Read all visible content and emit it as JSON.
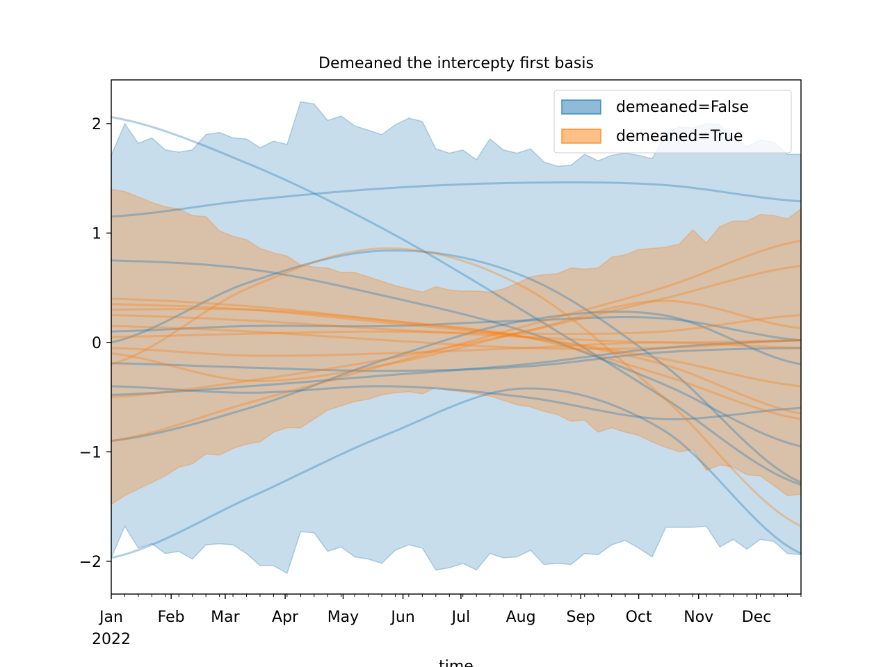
{
  "chart_data": {
    "type": "area",
    "title": "Demeaned the intercepty first basis",
    "xlabel": "time",
    "ylabel": "",
    "x_range": [
      "2022-01-01",
      "2022-12-24"
    ],
    "ylim": [
      -2.3,
      2.4
    ],
    "grid": false,
    "legend": {
      "placement": "upper right",
      "entries": [
        {
          "label": "demeaned=False",
          "color": "#1f77b4"
        },
        {
          "label": "demeaned=True",
          "color": "#ff7f0e"
        }
      ]
    },
    "x_ticks": [
      {
        "date": "2022-01-01",
        "label": "Jan",
        "sublabel": "2022"
      },
      {
        "date": "2022-02-01",
        "label": "Feb"
      },
      {
        "date": "2022-03-01",
        "label": "Mar"
      },
      {
        "date": "2022-04-01",
        "label": "Apr"
      },
      {
        "date": "2022-05-01",
        "label": "May"
      },
      {
        "date": "2022-06-01",
        "label": "Jun"
      },
      {
        "date": "2022-07-01",
        "label": "Jul"
      },
      {
        "date": "2022-08-01",
        "label": "Aug"
      },
      {
        "date": "2022-09-01",
        "label": "Sep"
      },
      {
        "date": "2022-10-01",
        "label": "Oct"
      },
      {
        "date": "2022-11-01",
        "label": "Nov"
      },
      {
        "date": "2022-12-01",
        "label": "Dec"
      }
    ],
    "y_ticks": [
      {
        "value": 2,
        "label": "2"
      },
      {
        "value": 1,
        "label": "1"
      },
      {
        "value": 0,
        "label": "0"
      },
      {
        "value": -1,
        "label": "−1"
      },
      {
        "value": -2,
        "label": "−2"
      }
    ],
    "bands": [
      {
        "name": "demeaned=False",
        "color": "#1f77b4",
        "upper_values": [
          1.71,
          2.0,
          1.82,
          1.87,
          1.76,
          1.74,
          1.76,
          1.9,
          1.92,
          1.87,
          1.86,
          1.78,
          1.84,
          1.81,
          2.2,
          2.18,
          2.03,
          2.07,
          1.98,
          1.94,
          1.9,
          1.99,
          2.05,
          2.02,
          1.77,
          1.73,
          1.76,
          1.67,
          1.86,
          1.76,
          1.73,
          1.77,
          1.65,
          1.61,
          1.62,
          1.72,
          1.66,
          1.71,
          1.73,
          1.71,
          1.68,
          1.91,
          1.97,
          1.96,
          2.0,
          1.99,
          1.86,
          1.79,
          1.85,
          1.83,
          1.72,
          1.72
        ],
        "lower_values": [
          -1.97,
          -1.68,
          -1.88,
          -1.84,
          -1.93,
          -1.91,
          -1.98,
          -1.85,
          -1.84,
          -1.85,
          -1.93,
          -2.04,
          -2.04,
          -2.11,
          -1.73,
          -1.74,
          -1.91,
          -1.87,
          -1.96,
          -1.98,
          -2.02,
          -1.9,
          -1.85,
          -1.88,
          -2.08,
          -2.06,
          -2.02,
          -2.08,
          -1.93,
          -1.97,
          -1.96,
          -1.9,
          -2.03,
          -2.02,
          -2.03,
          -1.93,
          -1.94,
          -1.85,
          -1.81,
          -1.88,
          -1.96,
          -1.69,
          -1.69,
          -1.69,
          -1.68,
          -1.87,
          -1.8,
          -1.89,
          -1.8,
          -1.82,
          -1.93,
          -1.94
        ]
      },
      {
        "name": "demeaned=True",
        "color": "#ff7f0e",
        "upper_values": [
          1.4,
          1.38,
          1.33,
          1.28,
          1.24,
          1.22,
          1.16,
          1.15,
          1.02,
          0.97,
          0.94,
          0.86,
          0.82,
          0.79,
          0.71,
          0.69,
          0.68,
          0.64,
          0.64,
          0.6,
          0.56,
          0.52,
          0.49,
          0.46,
          0.51,
          0.48,
          0.47,
          0.47,
          0.46,
          0.49,
          0.54,
          0.6,
          0.62,
          0.63,
          0.68,
          0.67,
          0.68,
          0.78,
          0.8,
          0.85,
          0.86,
          0.87,
          0.9,
          1.03,
          0.91,
          1.06,
          1.11,
          1.11,
          1.17,
          1.16,
          1.13,
          1.22
        ],
        "lower_values": [
          -1.48,
          -1.4,
          -1.34,
          -1.28,
          -1.22,
          -1.14,
          -1.11,
          -1.02,
          -1.03,
          -0.97,
          -0.93,
          -0.91,
          -0.82,
          -0.78,
          -0.78,
          -0.7,
          -0.62,
          -0.58,
          -0.54,
          -0.52,
          -0.48,
          -0.46,
          -0.45,
          -0.47,
          -0.41,
          -0.44,
          -0.45,
          -0.47,
          -0.49,
          -0.53,
          -0.57,
          -0.59,
          -0.63,
          -0.66,
          -0.72,
          -0.71,
          -0.82,
          -0.78,
          -0.82,
          -0.85,
          -0.91,
          -0.96,
          -1.0,
          -0.98,
          -1.17,
          -1.12,
          -1.14,
          -1.21,
          -1.22,
          -1.31,
          -1.4,
          -1.39
        ]
      }
    ],
    "line_groups": [
      {
        "name": "demeaned=False",
        "color": "#1f77b4",
        "x_knots": [
          0,
          0.2,
          0.4,
          0.6,
          0.8,
          1
        ],
        "lines": [
          [
            2.06,
            1.63,
            1.02,
            0.28,
            -0.5,
            -1.3
          ],
          [
            -1.97,
            -1.42,
            -0.84,
            -0.42,
            -0.8,
            -1.93
          ],
          [
            1.15,
            1.3,
            1.41,
            1.46,
            1.44,
            1.29
          ],
          [
            0.75,
            0.67,
            0.42,
            0.1,
            -0.38,
            -0.95
          ],
          [
            -0.4,
            -0.46,
            -0.4,
            -0.5,
            -0.7,
            -0.6
          ],
          [
            0.1,
            0.15,
            0.15,
            0.2,
            0.22,
            0.02
          ],
          [
            -0.48,
            -0.4,
            -0.3,
            -0.2,
            -0.05,
            0.02
          ],
          [
            -0.9,
            -0.6,
            -0.15,
            0.2,
            0.25,
            -0.2
          ],
          [
            0.0,
            0.55,
            0.84,
            0.6,
            -0.2,
            -1.28
          ],
          [
            -0.19,
            -0.23,
            -0.26,
            -0.22,
            -0.09,
            -0.05
          ]
        ]
      },
      {
        "name": "demeaned=True",
        "color": "#ff7f0e",
        "x_knots": [
          0,
          0.2,
          0.4,
          0.6,
          0.8,
          1
        ],
        "lines": [
          [
            -0.2,
            0.5,
            0.86,
            0.5,
            -0.5,
            -1.68
          ],
          [
            0.4,
            0.33,
            0.2,
            0.05,
            -0.3,
            -0.7
          ],
          [
            -0.9,
            -0.55,
            -0.2,
            0.15,
            0.5,
            0.93
          ],
          [
            0.3,
            0.3,
            0.2,
            0.05,
            -0.2,
            -0.65
          ],
          [
            0.25,
            0.2,
            0.12,
            0.05,
            0.0,
            0.02
          ],
          [
            -0.1,
            -0.35,
            -0.2,
            0.1,
            0.38,
            0.13
          ],
          [
            0.05,
            0.08,
            0.1,
            0.08,
            0.1,
            0.25
          ],
          [
            -0.5,
            -0.35,
            -0.15,
            0.1,
            0.4,
            0.7
          ],
          [
            -0.05,
            -0.12,
            -0.1,
            -0.05,
            0.0,
            -0.05
          ],
          [
            0.35,
            0.3,
            0.18,
            0.05,
            -0.15,
            -0.4
          ],
          [
            0.15,
            0.1,
            0.02,
            -0.05,
            -0.05,
            0.02
          ]
        ]
      }
    ]
  }
}
